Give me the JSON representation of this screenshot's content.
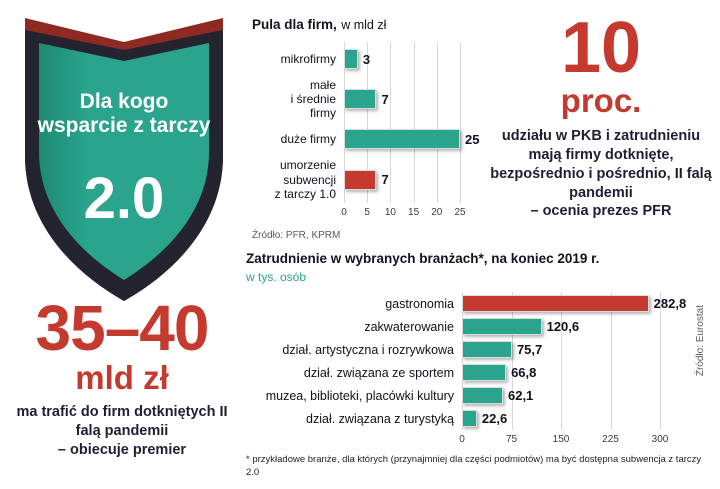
{
  "colors": {
    "teal": "#2aa48d",
    "teal_dark": "#1d8a73",
    "red": "#c43a2e",
    "dark": "#1e1f33",
    "shield_border": "#23242f",
    "shield_back": "#8e2a22"
  },
  "shield": {
    "title_line1": "Dla kogo",
    "title_line2": "wsparcie z tarczy",
    "version": "2.0"
  },
  "stat_top": {
    "number": "10",
    "unit": "proc.",
    "description": "udziału w PKB i zatrudnieniu mają firmy dotknięte, bezpośrednio i pośrednio, II falą pandemii",
    "attribution": "– ocenia prezes PFR"
  },
  "stat_bottom": {
    "number": "35–40",
    "unit": "mld zł",
    "description": "ma trafić do firm dotkniętych II falą pandemii",
    "attribution": "– obiecuje premier"
  },
  "chart_data": [
    {
      "type": "bar",
      "orientation": "horizontal",
      "title": "Pula dla firm,",
      "title_suffix": "w mld zł",
      "categories": [
        "mikrofirmy",
        "małe\ni średnie\nfirmy",
        "duże firmy",
        "umorzenie\nsubwencji\nz tarczy 1.0"
      ],
      "values": [
        3,
        7,
        25,
        7
      ],
      "value_labels": [
        "3",
        "7",
        "25",
        "7"
      ],
      "bar_colors": [
        "teal",
        "teal",
        "teal",
        "red"
      ],
      "xlim": [
        0,
        25
      ],
      "xticks": [
        0,
        5,
        10,
        15,
        20,
        25
      ],
      "grid": true,
      "source": "Źródło: PFR, KPRM"
    },
    {
      "type": "bar",
      "orientation": "horizontal",
      "title": "Zatrudnienie w wybranych branżach*, na koniec 2019 r.",
      "subtitle": "w tys. osób",
      "categories": [
        "gastronomia",
        "zakwaterowanie",
        "dział. artystyczna i rozrywkowa",
        "dział. związana ze sportem",
        "muzea, biblioteki, placówki kultury",
        "dział. związana z turystyką"
      ],
      "values": [
        282.8,
        120.6,
        75.7,
        66.8,
        62.1,
        22.6
      ],
      "value_labels": [
        "282,8",
        "120,6",
        "75,7",
        "66,8",
        "62,1",
        "22,6"
      ],
      "bar_colors": [
        "red",
        "teal",
        "teal",
        "teal",
        "teal",
        "teal"
      ],
      "xlim": [
        0,
        300
      ],
      "xticks": [
        0,
        75,
        150,
        225,
        300
      ],
      "grid": true,
      "source": "Źródło: Eurostat",
      "footnote": "* przykładowe branże, dla których (przynajmniej dla części podmiotów) ma być dostępna subwencja z tarczy 2.0"
    }
  ]
}
